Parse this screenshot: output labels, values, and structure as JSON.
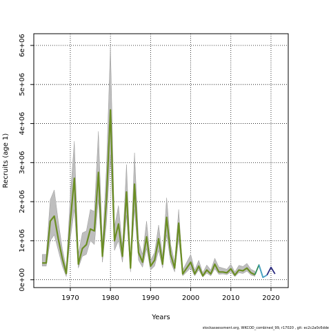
{
  "chart_data": {
    "type": "line",
    "title": "",
    "xlabel": "Years",
    "ylabel": "Recruits (age 1)",
    "xlim": [
      1960.9,
      2024.3
    ],
    "ylim": [
      -200000,
      6300000
    ],
    "xticks": [
      1970,
      1980,
      1990,
      2000,
      2010,
      2020
    ],
    "yticks": [
      0,
      1000000,
      2000000,
      3000000,
      4000000,
      5000000,
      6000000
    ],
    "ytick_labels": [
      "0e+00",
      "1e+06",
      "2e+06",
      "3e+06",
      "4e+06",
      "5e+06",
      "6e+06"
    ],
    "grid": true,
    "grid_style": "dotted",
    "band_color": "#bebebe",
    "series": [
      {
        "color": "#6b8e23",
        "x": [
          1963,
          1964,
          1965,
          1966,
          1967,
          1968,
          1969,
          1970,
          1971,
          1972,
          1973,
          1974,
          1975,
          1976,
          1977,
          1978,
          1979,
          1980,
          1981,
          1982,
          1983,
          1984,
          1985,
          1986,
          1987,
          1988,
          1989,
          1990,
          1991,
          1992,
          1993,
          1994,
          1995,
          1996,
          1997,
          1998,
          1999,
          2000,
          2001,
          2002,
          2003,
          2004,
          2005,
          2006,
          2007,
          2008,
          2009,
          2010,
          2011,
          2012,
          2013,
          2014,
          2015,
          2016
        ],
        "y": [
          430000,
          430000,
          1500000,
          1630000,
          1050000,
          550000,
          160000,
          1500000,
          2600000,
          400000,
          800000,
          900000,
          1300000,
          1250000,
          2750000,
          600000,
          2050000,
          4350000,
          1000000,
          1430000,
          600000,
          2250000,
          300000,
          2450000,
          700000,
          450000,
          1100000,
          350000,
          500000,
          1050000,
          400000,
          1600000,
          650000,
          300000,
          1450000,
          150000,
          300000,
          450000,
          150000,
          350000,
          100000,
          250000,
          150000,
          400000,
          200000,
          200000,
          180000,
          280000,
          120000,
          250000,
          230000,
          300000,
          180000,
          130000
        ],
        "lower": [
          350000,
          350000,
          1000000,
          1150000,
          750000,
          350000,
          80000,
          1050000,
          1800000,
          300000,
          600000,
          650000,
          1000000,
          900000,
          2050000,
          450000,
          1450000,
          3200000,
          750000,
          1000000,
          450000,
          1650000,
          200000,
          1800000,
          500000,
          320000,
          800000,
          250000,
          350000,
          750000,
          300000,
          1150000,
          450000,
          200000,
          1050000,
          100000,
          200000,
          300000,
          100000,
          250000,
          70000,
          170000,
          100000,
          280000,
          140000,
          150000,
          130000,
          200000,
          80000,
          180000,
          160000,
          220000,
          120000,
          90000
        ],
        "upper": [
          650000,
          650000,
          2050000,
          2300000,
          1500000,
          800000,
          300000,
          2150000,
          3550000,
          650000,
          1200000,
          1250000,
          1800000,
          1750000,
          3800000,
          900000,
          2850000,
          6000000,
          1350000,
          1900000,
          850000,
          2950000,
          450000,
          3250000,
          1000000,
          650000,
          1500000,
          500000,
          700000,
          1400000,
          600000,
          2100000,
          900000,
          450000,
          1800000,
          250000,
          450000,
          650000,
          250000,
          500000,
          180000,
          380000,
          250000,
          550000,
          330000,
          300000,
          270000,
          400000,
          200000,
          370000,
          340000,
          420000,
          270000,
          220000
        ]
      },
      {
        "color": "#2e8b57",
        "x": [
          2016,
          2017,
          2018
        ],
        "y": [
          130000,
          380000,
          60000
        ]
      },
      {
        "color": "#4aa3c8",
        "x": [
          2017,
          2018,
          2019
        ],
        "y": [
          380000,
          60000,
          120000
        ]
      },
      {
        "color": "#2b2b80",
        "x": [
          2019,
          2020,
          2021
        ],
        "y": [
          120000,
          320000,
          150000
        ]
      }
    ]
  },
  "footer": {
    "note": "stockassessment.org,  WKCOD_combined_99,  r17020 ,  git:  ec2c2a0c6dde"
  }
}
